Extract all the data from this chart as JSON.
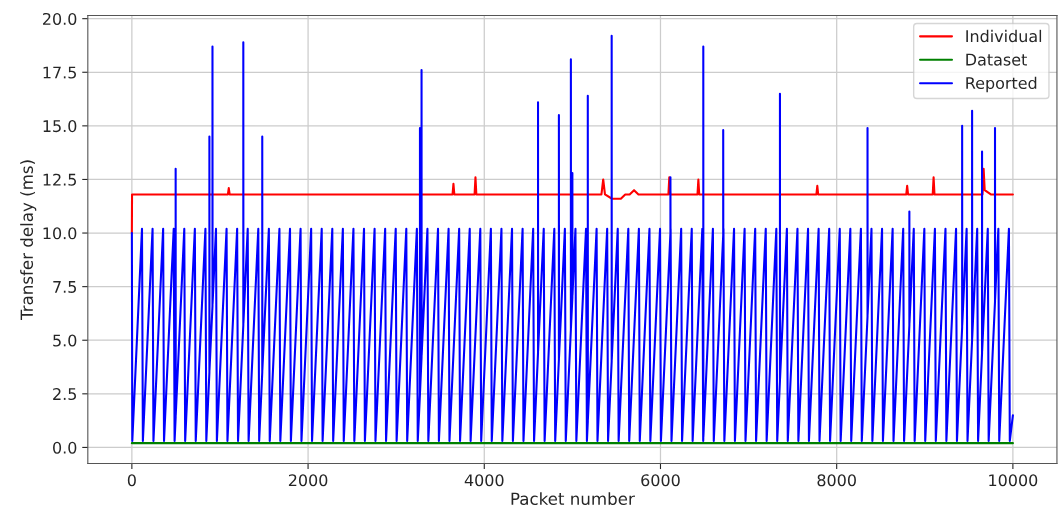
{
  "chart_data": {
    "type": "line",
    "xlabel": "Packet number",
    "ylabel": "Transfer delay (ms)",
    "xlim": [
      -500,
      10500
    ],
    "ylim": [
      -0.75,
      20.15
    ],
    "xticks": [
      0,
      2000,
      4000,
      6000,
      8000,
      10000
    ],
    "yticks": [
      {
        "value": 0,
        "label": "0.0"
      },
      {
        "value": 2.5,
        "label": "2.5"
      },
      {
        "value": 5,
        "label": "5.0"
      },
      {
        "value": 7.5,
        "label": "7.5"
      },
      {
        "value": 10,
        "label": "10.0"
      },
      {
        "value": 12.5,
        "label": "12.5"
      },
      {
        "value": 15,
        "label": "15.0"
      },
      {
        "value": 17.5,
        "label": "17.5"
      },
      {
        "value": 20,
        "label": "20.0"
      }
    ],
    "grid": true,
    "legend": "top right",
    "line_style": "solid",
    "marker": "none",
    "series": [
      {
        "name": "Individual",
        "color": "#ff0000",
        "x": [
          0,
          2,
          1090,
          1100,
          1110,
          3640,
          3650,
          3660,
          3890,
          3900,
          3910,
          5330,
          5350,
          5370,
          5450,
          5550,
          5600,
          5650,
          5700,
          5750,
          6090,
          6100,
          6110,
          6420,
          6430,
          6440,
          7770,
          7780,
          7790,
          8790,
          8800,
          8810,
          9090,
          9100,
          9110,
          9655,
          9668,
          9680,
          9750,
          10000
        ],
        "values": [
          10.0,
          11.8,
          11.8,
          12.1,
          11.8,
          11.8,
          12.3,
          11.8,
          11.8,
          12.6,
          11.8,
          11.8,
          12.5,
          11.8,
          11.6,
          11.6,
          11.8,
          11.8,
          12.0,
          11.8,
          11.8,
          12.6,
          11.8,
          11.8,
          12.5,
          11.8,
          11.8,
          12.2,
          11.8,
          11.8,
          12.2,
          11.8,
          11.8,
          12.6,
          11.8,
          11.8,
          13.0,
          12.0,
          11.8,
          11.8
        ]
      },
      {
        "name": "Dataset",
        "color": "#008000",
        "x": [
          0,
          10000
        ],
        "values": [
          0.2,
          0.2
        ]
      },
      {
        "name": "Reported",
        "color": "#0000ff",
        "x": [
          0,
          5,
          115,
          125,
          235,
          245,
          355,
          365,
          475,
          485,
          497,
          497,
          498,
          595,
          605,
          715,
          725,
          835,
          845,
          880,
          880,
          881,
          915,
          915,
          916,
          955,
          965,
          1075,
          1085,
          1195,
          1205,
          1265,
          1265,
          1266,
          1315,
          1325,
          1435,
          1445,
          1480,
          1480,
          1481,
          1555,
          1565,
          1675,
          1685,
          1795,
          1805,
          1915,
          1925,
          2035,
          2045,
          2155,
          2165,
          2275,
          2285,
          2395,
          2405,
          2515,
          2525,
          2635,
          2645,
          2755,
          2765,
          2875,
          2885,
          2995,
          3005,
          3115,
          3125,
          3235,
          3245,
          3270,
          3270,
          3271,
          3288,
          3288,
          3289,
          3355,
          3365,
          3475,
          3485,
          3595,
          3605,
          3715,
          3725,
          3835,
          3845,
          3955,
          3965,
          4075,
          4085,
          4195,
          4205,
          4315,
          4325,
          4435,
          4445,
          4555,
          4565,
          4610,
          4610,
          4611,
          4675,
          4685,
          4795,
          4805,
          4847,
          4847,
          4848,
          4915,
          4925,
          4983,
          4983,
          4984,
          5000,
          5000,
          5001,
          5035,
          5045,
          5155,
          5165,
          5175,
          5175,
          5176,
          5275,
          5285,
          5395,
          5405,
          5446,
          5446,
          5447,
          5515,
          5525,
          5635,
          5645,
          5755,
          5765,
          5875,
          5885,
          5995,
          6005,
          6113,
          6113,
          6114,
          6115,
          6125,
          6235,
          6245,
          6355,
          6365,
          6475,
          6485,
          6486,
          6486,
          6487,
          6595,
          6605,
          6712,
          6712,
          6713,
          6715,
          6725,
          6835,
          6845,
          6955,
          6965,
          7075,
          7085,
          7195,
          7205,
          7315,
          7325,
          7356,
          7356,
          7357,
          7435,
          7445,
          7555,
          7565,
          7675,
          7685,
          7795,
          7805,
          7915,
          7925,
          8035,
          8045,
          8155,
          8165,
          8275,
          8285,
          8350,
          8350,
          8351,
          8395,
          8405,
          8515,
          8525,
          8635,
          8645,
          8755,
          8765,
          8825,
          8825,
          8826,
          8875,
          8885,
          8995,
          9005,
          9115,
          9125,
          9235,
          9245,
          9355,
          9365,
          9424,
          9424,
          9425,
          9475,
          9485,
          9537,
          9537,
          9538,
          9595,
          9605,
          9650,
          9650,
          9651,
          9715,
          9725,
          9797,
          9797,
          9798,
          9835,
          9845,
          9955,
          9965,
          10000
        ],
        "values": [
          10.0,
          0.3,
          10.2,
          0.3,
          10.2,
          0.3,
          10.2,
          0.3,
          10.2,
          0.3,
          1.4,
          13.0,
          1.5,
          10.2,
          0.3,
          10.2,
          0.3,
          10.2,
          0.3,
          3.5,
          14.5,
          3.6,
          6.6,
          18.7,
          6.7,
          10.2,
          0.3,
          10.2,
          0.3,
          10.2,
          0.3,
          5.7,
          18.9,
          5.8,
          10.2,
          0.3,
          10.2,
          0.3,
          3.5,
          14.5,
          3.6,
          10.2,
          0.3,
          10.2,
          0.3,
          10.2,
          0.3,
          10.2,
          0.3,
          10.2,
          0.3,
          10.2,
          0.3,
          10.2,
          0.3,
          10.2,
          0.3,
          10.2,
          0.3,
          10.2,
          0.3,
          10.2,
          0.3,
          10.2,
          0.3,
          10.2,
          0.3,
          10.2,
          0.3,
          10.2,
          0.3,
          2.5,
          14.9,
          2.6,
          4.2,
          17.6,
          4.3,
          10.2,
          0.3,
          10.2,
          0.3,
          10.2,
          0.3,
          10.2,
          0.3,
          10.2,
          0.3,
          10.2,
          0.3,
          10.2,
          0.3,
          10.2,
          0.3,
          10.2,
          0.3,
          10.2,
          0.3,
          10.2,
          0.3,
          4.4,
          16.1,
          4.5,
          10.2,
          0.3,
          10.2,
          0.3,
          4.1,
          15.5,
          4.2,
          10.2,
          0.3,
          5.5,
          18.1,
          5.6,
          7.0,
          12.8,
          7.1,
          10.2,
          0.3,
          10.2,
          0.3,
          1.2,
          16.4,
          1.3,
          10.2,
          0.3,
          10.2,
          0.3,
          4.0,
          19.2,
          4.1,
          10.2,
          0.3,
          10.2,
          0.3,
          10.2,
          0.3,
          10.2,
          0.3,
          10.2,
          0.3,
          10.0,
          12.6,
          10.1,
          10.2,
          0.3,
          10.2,
          0.3,
          10.2,
          0.3,
          10.2,
          0.3,
          0.4,
          18.7,
          0.5,
          10.2,
          0.3,
          9.9,
          14.8,
          10.0,
          10.2,
          0.3,
          10.2,
          0.3,
          10.2,
          0.3,
          10.2,
          0.3,
          10.2,
          0.3,
          10.2,
          0.3,
          3.1,
          16.5,
          3.2,
          10.2,
          0.3,
          10.2,
          0.3,
          10.2,
          0.3,
          10.2,
          0.3,
          10.2,
          0.3,
          10.2,
          0.3,
          10.2,
          0.3,
          10.2,
          0.3,
          6.1,
          14.9,
          6.2,
          10.2,
          0.3,
          10.2,
          0.3,
          10.2,
          0.3,
          10.2,
          0.3,
          5.7,
          11.0,
          5.8,
          10.2,
          0.3,
          10.2,
          0.3,
          10.2,
          0.3,
          10.2,
          0.3,
          10.2,
          0.3,
          5.6,
          15.0,
          5.7,
          10.2,
          0.3,
          5.0,
          15.7,
          5.1,
          10.2,
          0.3,
          4.4,
          13.8,
          4.5,
          10.2,
          0.3,
          6.8,
          14.9,
          6.9,
          10.2,
          0.3,
          10.2,
          0.3,
          1.5
        ]
      }
    ]
  }
}
